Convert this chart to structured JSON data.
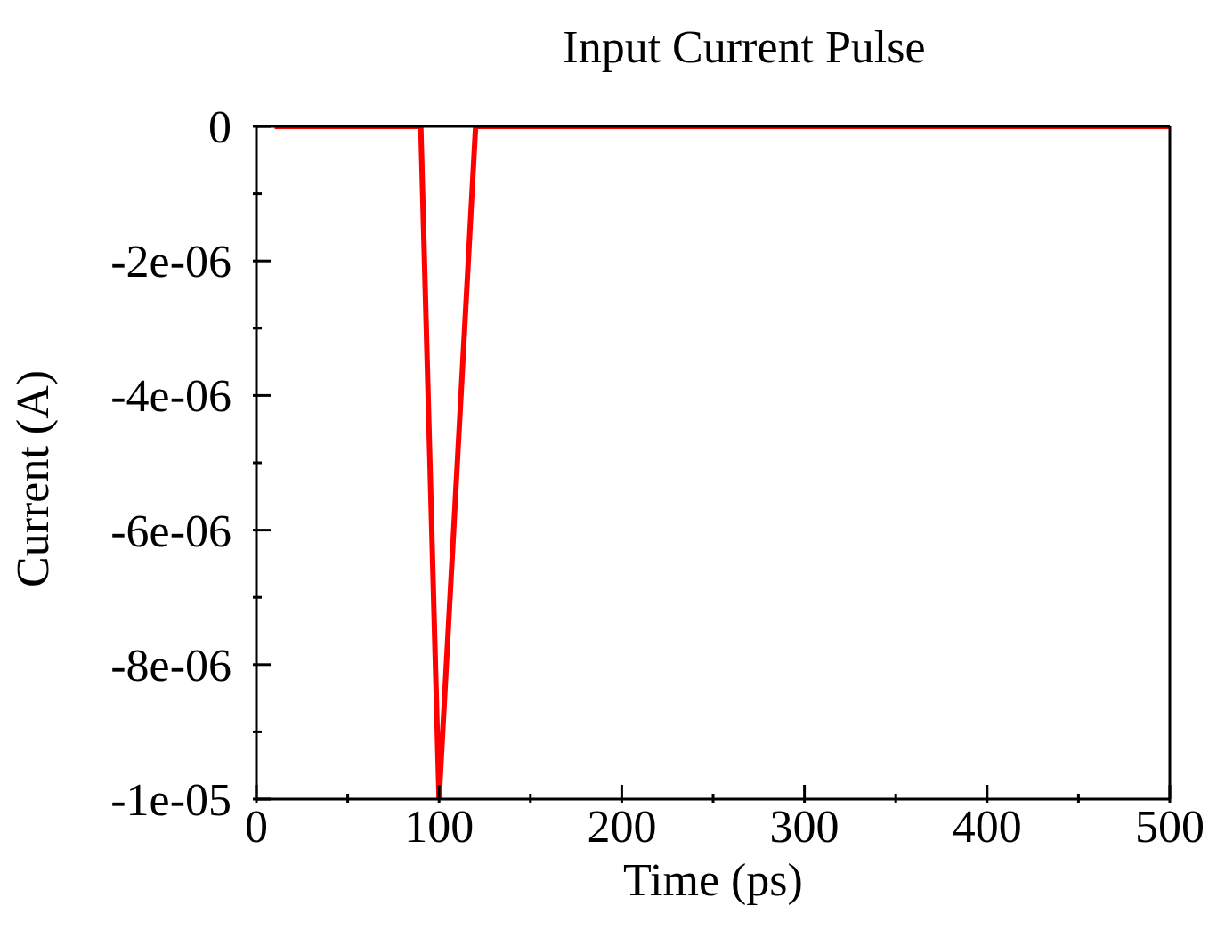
{
  "chart_data": {
    "type": "line",
    "title": "Input Current Pulse",
    "xlabel": "Time (ps)",
    "ylabel": "Current (A)",
    "x": [
      10,
      90,
      100,
      120,
      500
    ],
    "series": [
      {
        "color": "#ff0000",
        "values": [
          0,
          0,
          -1e-05,
          0,
          0
        ]
      }
    ],
    "xlim": [
      0,
      500
    ],
    "ylim": [
      -1e-05,
      0
    ],
    "xticks": [
      0,
      {
        "value": 50,
        "label": null
      },
      100,
      {
        "value": 150,
        "label": null
      },
      200,
      {
        "value": 250,
        "label": null
      },
      300,
      {
        "value": 350,
        "label": null
      },
      400,
      {
        "value": 450,
        "label": null
      },
      500
    ],
    "yticks": [
      {
        "value": -1e-05,
        "label": "-1e-05"
      },
      {
        "value": -9e-06,
        "label": null
      },
      {
        "value": -8e-06,
        "label": "-8e-06"
      },
      {
        "value": -7e-06,
        "label": null
      },
      {
        "value": -6e-06,
        "label": "-6e-06"
      },
      {
        "value": -5e-06,
        "label": null
      },
      {
        "value": -4e-06,
        "label": "-4e-06"
      },
      {
        "value": -3e-06,
        "label": null
      },
      {
        "value": -2e-06,
        "label": "-2e-06"
      },
      {
        "value": -1e-06,
        "label": null
      },
      {
        "value": 0,
        "label": "0"
      }
    ],
    "grid": false,
    "legend": false,
    "marker": "none",
    "line_style": "solid"
  }
}
